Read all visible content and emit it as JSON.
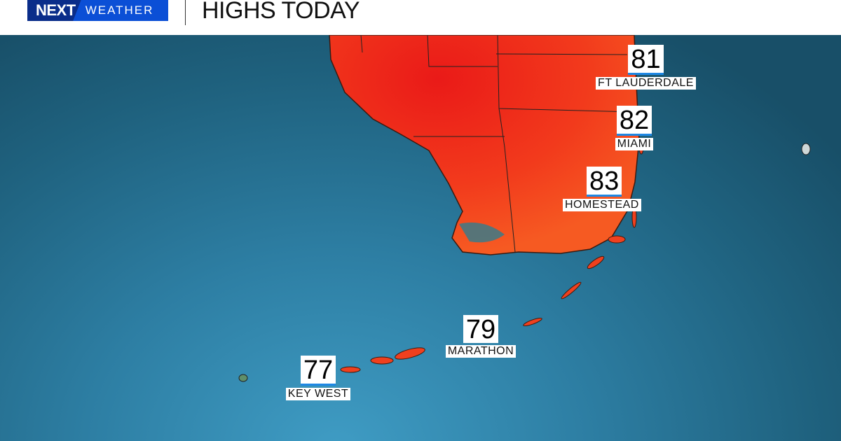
{
  "header": {
    "brand_next": "NEXT",
    "brand_weather": "WEATHER",
    "title": "HIGHS TODAY"
  },
  "colors": {
    "brand_blue": "#0b4fd6",
    "land_hot": "#f0281c",
    "ocean": "#2d7ea3",
    "underline": "#1e88e5"
  },
  "cities": [
    {
      "name": "FT LAUDERDALE",
      "high": "81"
    },
    {
      "name": "MIAMI",
      "high": "82"
    },
    {
      "name": "HOMESTEAD",
      "high": "83"
    },
    {
      "name": "MARATHON",
      "high": "79"
    },
    {
      "name": "KEY WEST",
      "high": "77"
    }
  ]
}
